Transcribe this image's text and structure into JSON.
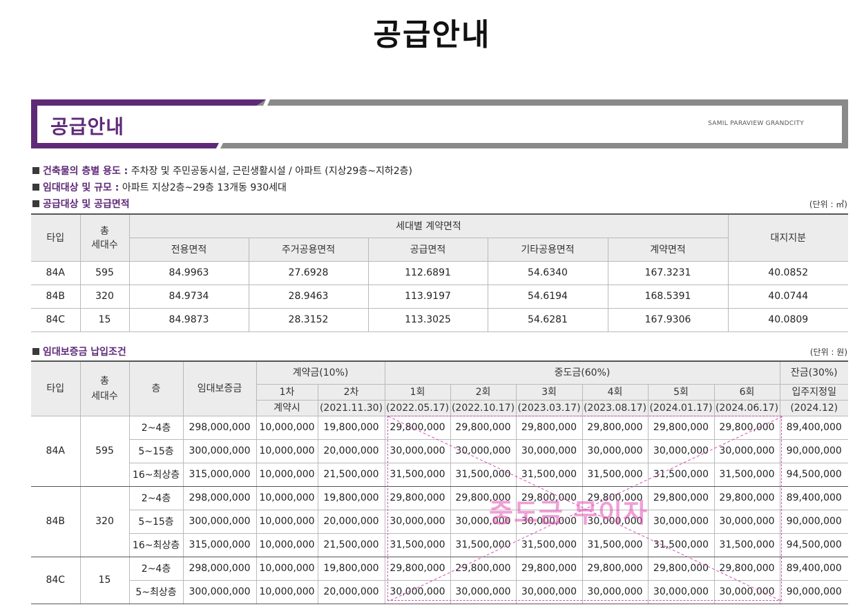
{
  "page_title": "공급안내",
  "banner": {
    "title": "공급안내",
    "subtitle": "SAMIL PARAVIEW GRANDCITY"
  },
  "bullets": [
    {
      "label": "건축물의 층별 용도 :",
      "text": " 주차장 및 주민공동시설, 근린생활시설 / 아파트 (지상29층~지하2층)"
    },
    {
      "label": "임대대상 및 규모 :",
      "text": " 아파트 지상2층~29층 13개동 930세대"
    },
    {
      "label": "공급대상 및 공급면적",
      "text": ""
    }
  ],
  "area_table": {
    "unit": "(단위 : ㎡)",
    "headers": {
      "type": "타입",
      "households": "총\n세대수",
      "contract_area_group": "세대별 계약면적",
      "exclusive": "전용면적",
      "residential_common": "주거공용면적",
      "supply": "공급면적",
      "other_common": "기타공용면적",
      "contract": "계약면적",
      "land_share": "대지지분"
    },
    "rows": [
      {
        "type": "84A",
        "households": "595",
        "exclusive": "84.9963",
        "residential_common": "27.6928",
        "supply": "112.6891",
        "other_common": "54.6340",
        "contract": "167.3231",
        "land_share": "40.0852"
      },
      {
        "type": "84B",
        "households": "320",
        "exclusive": "84.9734",
        "residential_common": "28.9463",
        "supply": "113.9197",
        "other_common": "54.6194",
        "contract": "168.5391",
        "land_share": "40.0744"
      },
      {
        "type": "84C",
        "households": "15",
        "exclusive": "84.9873",
        "residential_common": "28.3152",
        "supply": "113.3025",
        "other_common": "54.6281",
        "contract": "167.9306",
        "land_share": "40.0809"
      }
    ]
  },
  "deposit_section_title": "임대보증금 납입조건",
  "deposit_table": {
    "unit": "(단위 : 원)",
    "headers": {
      "type": "타입",
      "households": "총\n세대수",
      "floor": "층",
      "deposit": "임대보증금",
      "down_payment": "계약금(10%)",
      "interim": "중도금(60%)",
      "balance": "잔금(30%)",
      "dp1": "1차",
      "dp1_date": "계약시",
      "dp2": "2차",
      "dp2_date": "(2021.11.30)",
      "i1": "1회",
      "i1_date": "(2022.05.17)",
      "i2": "2회",
      "i2_date": "(2022.10.17)",
      "i3": "3회",
      "i3_date": "(2023.03.17)",
      "i4": "4회",
      "i4_date": "(2023.08.17)",
      "i5": "5회",
      "i5_date": "(2024.01.17)",
      "i6": "6회",
      "i6_date": "(2024.06.17)",
      "bal": "입주지정일",
      "bal_date": "(2024.12)"
    },
    "groups": [
      {
        "type": "84A",
        "households": "595",
        "rows": [
          {
            "floor": "2~4층",
            "deposit": "298,000,000",
            "dp1": "10,000,000",
            "dp2": "19,800,000",
            "i1": "29,800,000",
            "i2": "29,800,000",
            "i3": "29,800,000",
            "i4": "29,800,000",
            "i5": "29,800,000",
            "i6": "29,800,000",
            "bal": "89,400,000"
          },
          {
            "floor": "5~15층",
            "deposit": "300,000,000",
            "dp1": "10,000,000",
            "dp2": "20,000,000",
            "i1": "30,000,000",
            "i2": "30,000,000",
            "i3": "30,000,000",
            "i4": "30,000,000",
            "i5": "30,000,000",
            "i6": "30,000,000",
            "bal": "90,000,000"
          },
          {
            "floor": "16~최상층",
            "deposit": "315,000,000",
            "dp1": "10,000,000",
            "dp2": "21,500,000",
            "i1": "31,500,000",
            "i2": "31,500,000",
            "i3": "31,500,000",
            "i4": "31,500,000",
            "i5": "31,500,000",
            "i6": "31,500,000",
            "bal": "94,500,000"
          }
        ]
      },
      {
        "type": "84B",
        "households": "320",
        "rows": [
          {
            "floor": "2~4층",
            "deposit": "298,000,000",
            "dp1": "10,000,000",
            "dp2": "19,800,000",
            "i1": "29,800,000",
            "i2": "29,800,000",
            "i3": "29,800,000",
            "i4": "29,800,000",
            "i5": "29,800,000",
            "i6": "29,800,000",
            "bal": "89,400,000"
          },
          {
            "floor": "5~15층",
            "deposit": "300,000,000",
            "dp1": "10,000,000",
            "dp2": "20,000,000",
            "i1": "30,000,000",
            "i2": "30,000,000",
            "i3": "30,000,000",
            "i4": "30,000,000",
            "i5": "30,000,000",
            "i6": "30,000,000",
            "bal": "90,000,000"
          },
          {
            "floor": "16~최상층",
            "deposit": "315,000,000",
            "dp1": "10,000,000",
            "dp2": "21,500,000",
            "i1": "31,500,000",
            "i2": "31,500,000",
            "i3": "31,500,000",
            "i4": "31,500,000",
            "i5": "31,500,000",
            "i6": "31,500,000",
            "bal": "94,500,000"
          }
        ]
      },
      {
        "type": "84C",
        "households": "15",
        "rows": [
          {
            "floor": "2~4층",
            "deposit": "298,000,000",
            "dp1": "10,000,000",
            "dp2": "19,800,000",
            "i1": "29,800,000",
            "i2": "29,800,000",
            "i3": "29,800,000",
            "i4": "29,800,000",
            "i5": "29,800,000",
            "i6": "29,800,000",
            "bal": "89,400,000"
          },
          {
            "floor": "5~최상층",
            "deposit": "300,000,000",
            "dp1": "10,000,000",
            "dp2": "20,000,000",
            "i1": "30,000,000",
            "i2": "30,000,000",
            "i3": "30,000,000",
            "i4": "30,000,000",
            "i5": "30,000,000",
            "i6": "30,000,000",
            "bal": "90,000,000"
          }
        ]
      }
    ]
  },
  "overlay_label": "중도금 무이자",
  "colors": {
    "accent": "#5e2a78",
    "overlay": "#d64fb4"
  }
}
